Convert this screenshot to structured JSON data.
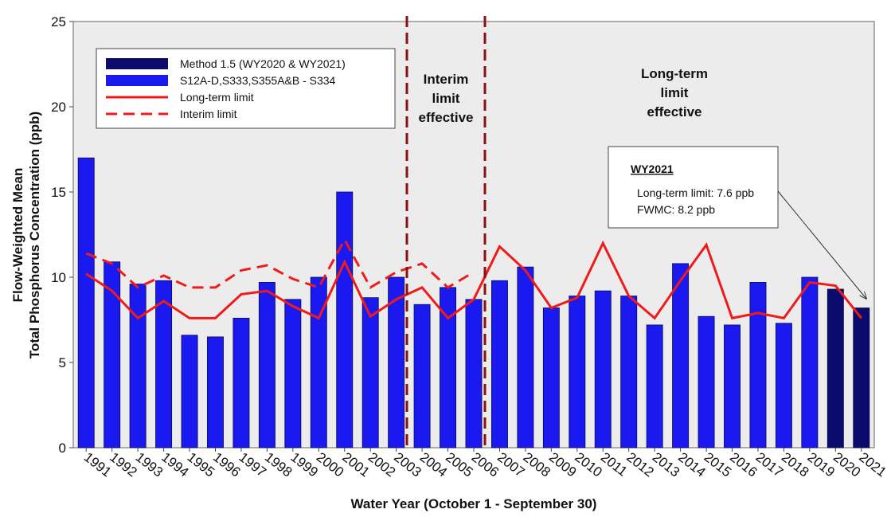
{
  "chart_data": {
    "type": "bar",
    "x_label": "Water Year (October 1 - September 30)",
    "y_label": [
      "Flow-Weighted Mean",
      "Total Phosphorus Concentration (ppb)"
    ],
    "categories": [
      "1991",
      "1992",
      "1993",
      "1994",
      "1995",
      "1996",
      "1997",
      "1998",
      "1999",
      "2000",
      "2001",
      "2002",
      "2003",
      "2004",
      "2005",
      "2006",
      "2007",
      "2008",
      "2009",
      "2010",
      "2011",
      "2012",
      "2013",
      "2014",
      "2015",
      "2016",
      "2017",
      "2018",
      "2019",
      "2020",
      "2021"
    ],
    "ylim": [
      0,
      25
    ],
    "yticks": [
      0,
      5,
      10,
      15,
      20,
      25
    ],
    "series": [
      {
        "name": "Method 1.5 (WY2020 & WY2021)",
        "type": "bar",
        "color": "#0b0b6e",
        "values": [
          null,
          null,
          null,
          null,
          null,
          null,
          null,
          null,
          null,
          null,
          null,
          null,
          null,
          null,
          null,
          null,
          null,
          null,
          null,
          null,
          null,
          null,
          null,
          null,
          null,
          null,
          null,
          null,
          null,
          9.3,
          8.2
        ]
      },
      {
        "name": "S12A-D,S333,S355A&B - S334",
        "type": "bar",
        "color": "#1a1af0",
        "values": [
          17.0,
          10.9,
          9.6,
          9.8,
          6.6,
          6.5,
          7.6,
          9.7,
          8.7,
          10.0,
          15.0,
          8.8,
          10.0,
          8.4,
          9.4,
          8.7,
          9.8,
          10.6,
          8.2,
          8.9,
          9.2,
          8.9,
          7.2,
          10.8,
          7.7,
          7.2,
          9.7,
          7.3,
          10.0,
          null,
          null
        ]
      },
      {
        "name": "Long-term limit",
        "type": "line",
        "color": "#f01a1a",
        "dashed": false,
        "values": [
          10.2,
          9.2,
          7.6,
          8.6,
          7.6,
          7.6,
          9.0,
          9.2,
          8.3,
          7.6,
          10.9,
          7.7,
          8.7,
          9.4,
          7.6,
          8.7,
          11.8,
          10.4,
          8.2,
          8.8,
          12.0,
          8.9,
          7.6,
          9.8,
          11.9,
          7.6,
          7.9,
          7.6,
          9.7,
          9.5,
          7.6
        ]
      },
      {
        "name": "Interim limit",
        "type": "line",
        "color": "#f01a1a",
        "dashed": true,
        "values": [
          11.4,
          10.8,
          9.4,
          10.1,
          9.4,
          9.4,
          10.4,
          10.7,
          9.9,
          9.4,
          12.2,
          9.4,
          10.3,
          10.8,
          9.4,
          10.3,
          null,
          null,
          null,
          null,
          null,
          null,
          null,
          null,
          null,
          null,
          null,
          null,
          null,
          null,
          null
        ]
      }
    ],
    "regions": [
      [
        "Interim",
        "limit",
        "effective"
      ],
      [
        "Long-term",
        "limit",
        "effective"
      ]
    ],
    "annotation": {
      "title": "WY2021",
      "lines": [
        "Long-term limit: 7.6 ppb",
        "FWMC: 8.2 ppb"
      ]
    }
  }
}
